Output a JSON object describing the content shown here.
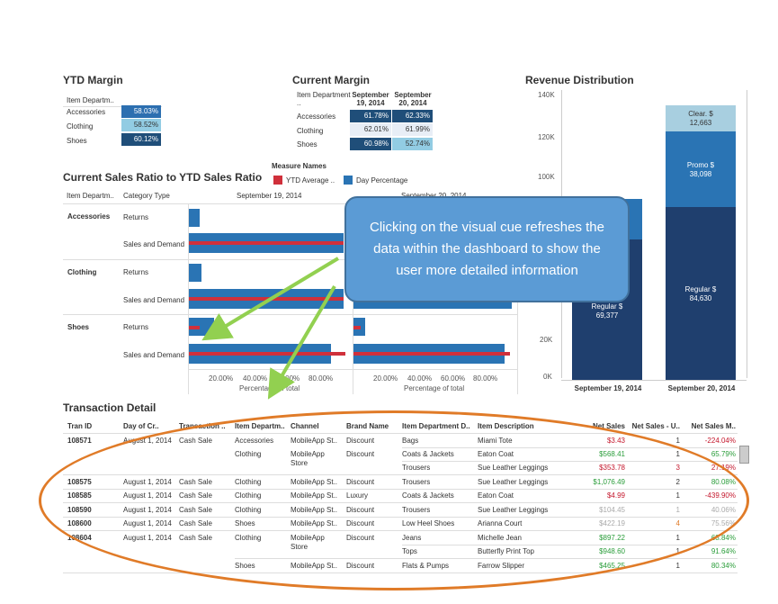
{
  "ytd_margin": {
    "title": "YTD Margin",
    "header": "Item Departm..",
    "rows": [
      {
        "label": "Accessories",
        "value": "58.03%"
      },
      {
        "label": "Clothing",
        "value": "58.52%"
      },
      {
        "label": "Shoes",
        "value": "60.12%"
      }
    ]
  },
  "current_margin": {
    "title": "Current Margin",
    "header": "Item Department ..",
    "col1": "September 19, 2014",
    "col2": "September 20, 2014",
    "rows": [
      {
        "label": "Accessories",
        "v1": "61.78%",
        "v2": "62.33%"
      },
      {
        "label": "Clothing",
        "v1": "62.01%",
        "v2": "61.99%"
      },
      {
        "label": "Shoes",
        "v1": "60.98%",
        "v2": "52.74%"
      }
    ]
  },
  "ratio_chart": {
    "title": "Current Sales Ratio to YTD Sales Ratio",
    "legend_title": "Measure Names",
    "legend_ytd": "YTD Average ..",
    "legend_day": "Day Percentage",
    "col_dept": "Item Departm..",
    "col_cat": "Category Type",
    "date1": "September 19, 2014",
    "date2": "September 20, 2014",
    "groups": [
      {
        "dept": "Accessories",
        "cats": [
          "Returns",
          "Sales and Demand"
        ]
      },
      {
        "dept": "Clothing",
        "cats": [
          "Returns",
          "Sales and Demand"
        ]
      },
      {
        "dept": "Shoes",
        "cats": [
          "Returns",
          "Sales and Demand"
        ]
      }
    ],
    "ticks": [
      "20.00%",
      "40.00%",
      "60.00%",
      "80.00%"
    ],
    "axis_label": "Percentage of total"
  },
  "revenue": {
    "title": "Revenue Distribution",
    "yticks": [
      "140K",
      "120K",
      "100K",
      "20K",
      "0K"
    ],
    "col1": "September 19, 2014",
    "col2": "September 20, 2014",
    "reg1_label": "Regular $",
    "reg1_value": "69,377",
    "reg2_label": "Regular $",
    "reg2_value": "84,630",
    "promo_label": "Promo $",
    "promo_value": "38,098",
    "clear_label": "Clear. $",
    "clear_value": "12,663"
  },
  "callout": "Clicking on the visual cue refreshes the data within the dashboard to show the user more detailed information",
  "transactions": {
    "title": "Transaction Detail",
    "headers": [
      "Tran ID",
      "Day of Cr..",
      "Transaction ..",
      "Item Departm..",
      "Channel",
      "Brand Name",
      "Item Department D..",
      "Item Description",
      "Net Sales",
      "Net Sales - U..",
      "Net Sales M.."
    ],
    "rows": [
      {
        "id": "108571",
        "day": "August 1, 2014",
        "type": "Cash Sale",
        "dept": "Accessories",
        "channel": "MobileApp St..",
        "brand": "Discount",
        "sub": "Bags",
        "desc": "Miami Tote",
        "sales": "$3.43",
        "units": "1",
        "margin": "-224.04%"
      },
      {
        "id": "",
        "day": "",
        "type": "",
        "dept": "Clothing",
        "channel": "MobileApp Store",
        "brand": "Discount",
        "sub": "Coats & Jackets",
        "desc": "Eaton Coat",
        "sales": "$568.41",
        "units": "1",
        "margin": "65.79%"
      },
      {
        "id": "",
        "day": "",
        "type": "",
        "dept": "",
        "channel": "",
        "brand": "",
        "sub": "Trousers",
        "desc": "Sue Leather Leggings",
        "sales": "$353.78",
        "units": "3",
        "margin": "27.19%"
      },
      {
        "id": "108575",
        "day": "August 1, 2014",
        "type": "Cash Sale",
        "dept": "Clothing",
        "channel": "MobileApp St..",
        "brand": "Discount",
        "sub": "Trousers",
        "desc": "Sue Leather Leggings",
        "sales": "$1,076.49",
        "units": "2",
        "margin": "80.08%"
      },
      {
        "id": "108585",
        "day": "August 1, 2014",
        "type": "Cash Sale",
        "dept": "Clothing",
        "channel": "MobileApp St..",
        "brand": "Luxury",
        "sub": "Coats & Jackets",
        "desc": "Eaton Coat",
        "sales": "$4.99",
        "units": "1",
        "margin": "-439.90%"
      },
      {
        "id": "108590",
        "day": "August 1, 2014",
        "type": "Cash Sale",
        "dept": "Clothing",
        "channel": "MobileApp St..",
        "brand": "Discount",
        "sub": "Trousers",
        "desc": "Sue Leather Leggings",
        "sales": "$104.45",
        "units": "1",
        "margin": "40.06%"
      },
      {
        "id": "108600",
        "day": "August 1, 2014",
        "type": "Cash Sale",
        "dept": "Shoes",
        "channel": "MobileApp St..",
        "brand": "Discount",
        "sub": "Low Heel Shoes",
        "desc": "Arianna Court",
        "sales": "$422.19",
        "units": "4",
        "margin": "75.56%"
      },
      {
        "id": "108604",
        "day": "August 1, 2014",
        "type": "Cash Sale",
        "dept": "Clothing",
        "channel": "MobileApp Store",
        "brand": "Discount",
        "sub": "Jeans",
        "desc": "Michelle Jean",
        "sales": "$897.22",
        "units": "1",
        "margin": "68.84%"
      },
      {
        "id": "",
        "day": "",
        "type": "",
        "dept": "",
        "channel": "",
        "brand": "",
        "sub": "Tops",
        "desc": "Butterfly Print Top",
        "sales": "$948.60",
        "units": "1",
        "margin": "91.64%"
      },
      {
        "id": "",
        "day": "",
        "type": "",
        "dept": "Shoes",
        "channel": "MobileApp St..",
        "brand": "Discount",
        "sub": "Flats & Pumps",
        "desc": "Farrow Slipper",
        "sales": "$465.25",
        "units": "1",
        "margin": "80.34%"
      }
    ]
  }
}
